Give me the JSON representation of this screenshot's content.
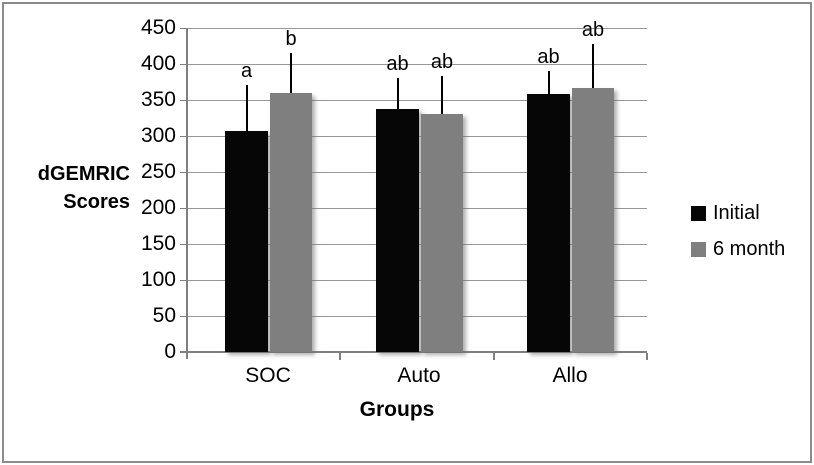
{
  "figure": {
    "background": "#ffffff",
    "border_color": "#8b8b8b"
  },
  "chart_data": {
    "type": "bar",
    "title": "",
    "ylabel_lines": [
      "dGEMRIC",
      "Scores"
    ],
    "xlabel": "Groups",
    "categories": [
      "SOC",
      "Auto",
      "Allo"
    ],
    "series": [
      {
        "name": "Initial",
        "color": "#060606",
        "values": [
          307,
          337,
          359
        ],
        "error_up": [
          64,
          44,
          31
        ],
        "letters": [
          "a",
          "ab",
          "ab"
        ]
      },
      {
        "name": "6 month",
        "color": "#7f7f7f",
        "values": [
          360,
          330,
          367
        ],
        "error_up": [
          55,
          54,
          61
        ],
        "letters": [
          "b",
          "ab",
          "ab"
        ]
      }
    ],
    "y_ticks": [
      450,
      400,
      350,
      300,
      250,
      200,
      150,
      100,
      50,
      0
    ],
    "ylim": [
      0,
      450
    ],
    "grid": true,
    "gridline_color": "#989898",
    "axis_color": "#7f7f7f",
    "error_bar_color": "#000000",
    "legend_position": "right",
    "legend": [
      "Initial",
      "6 month"
    ]
  }
}
